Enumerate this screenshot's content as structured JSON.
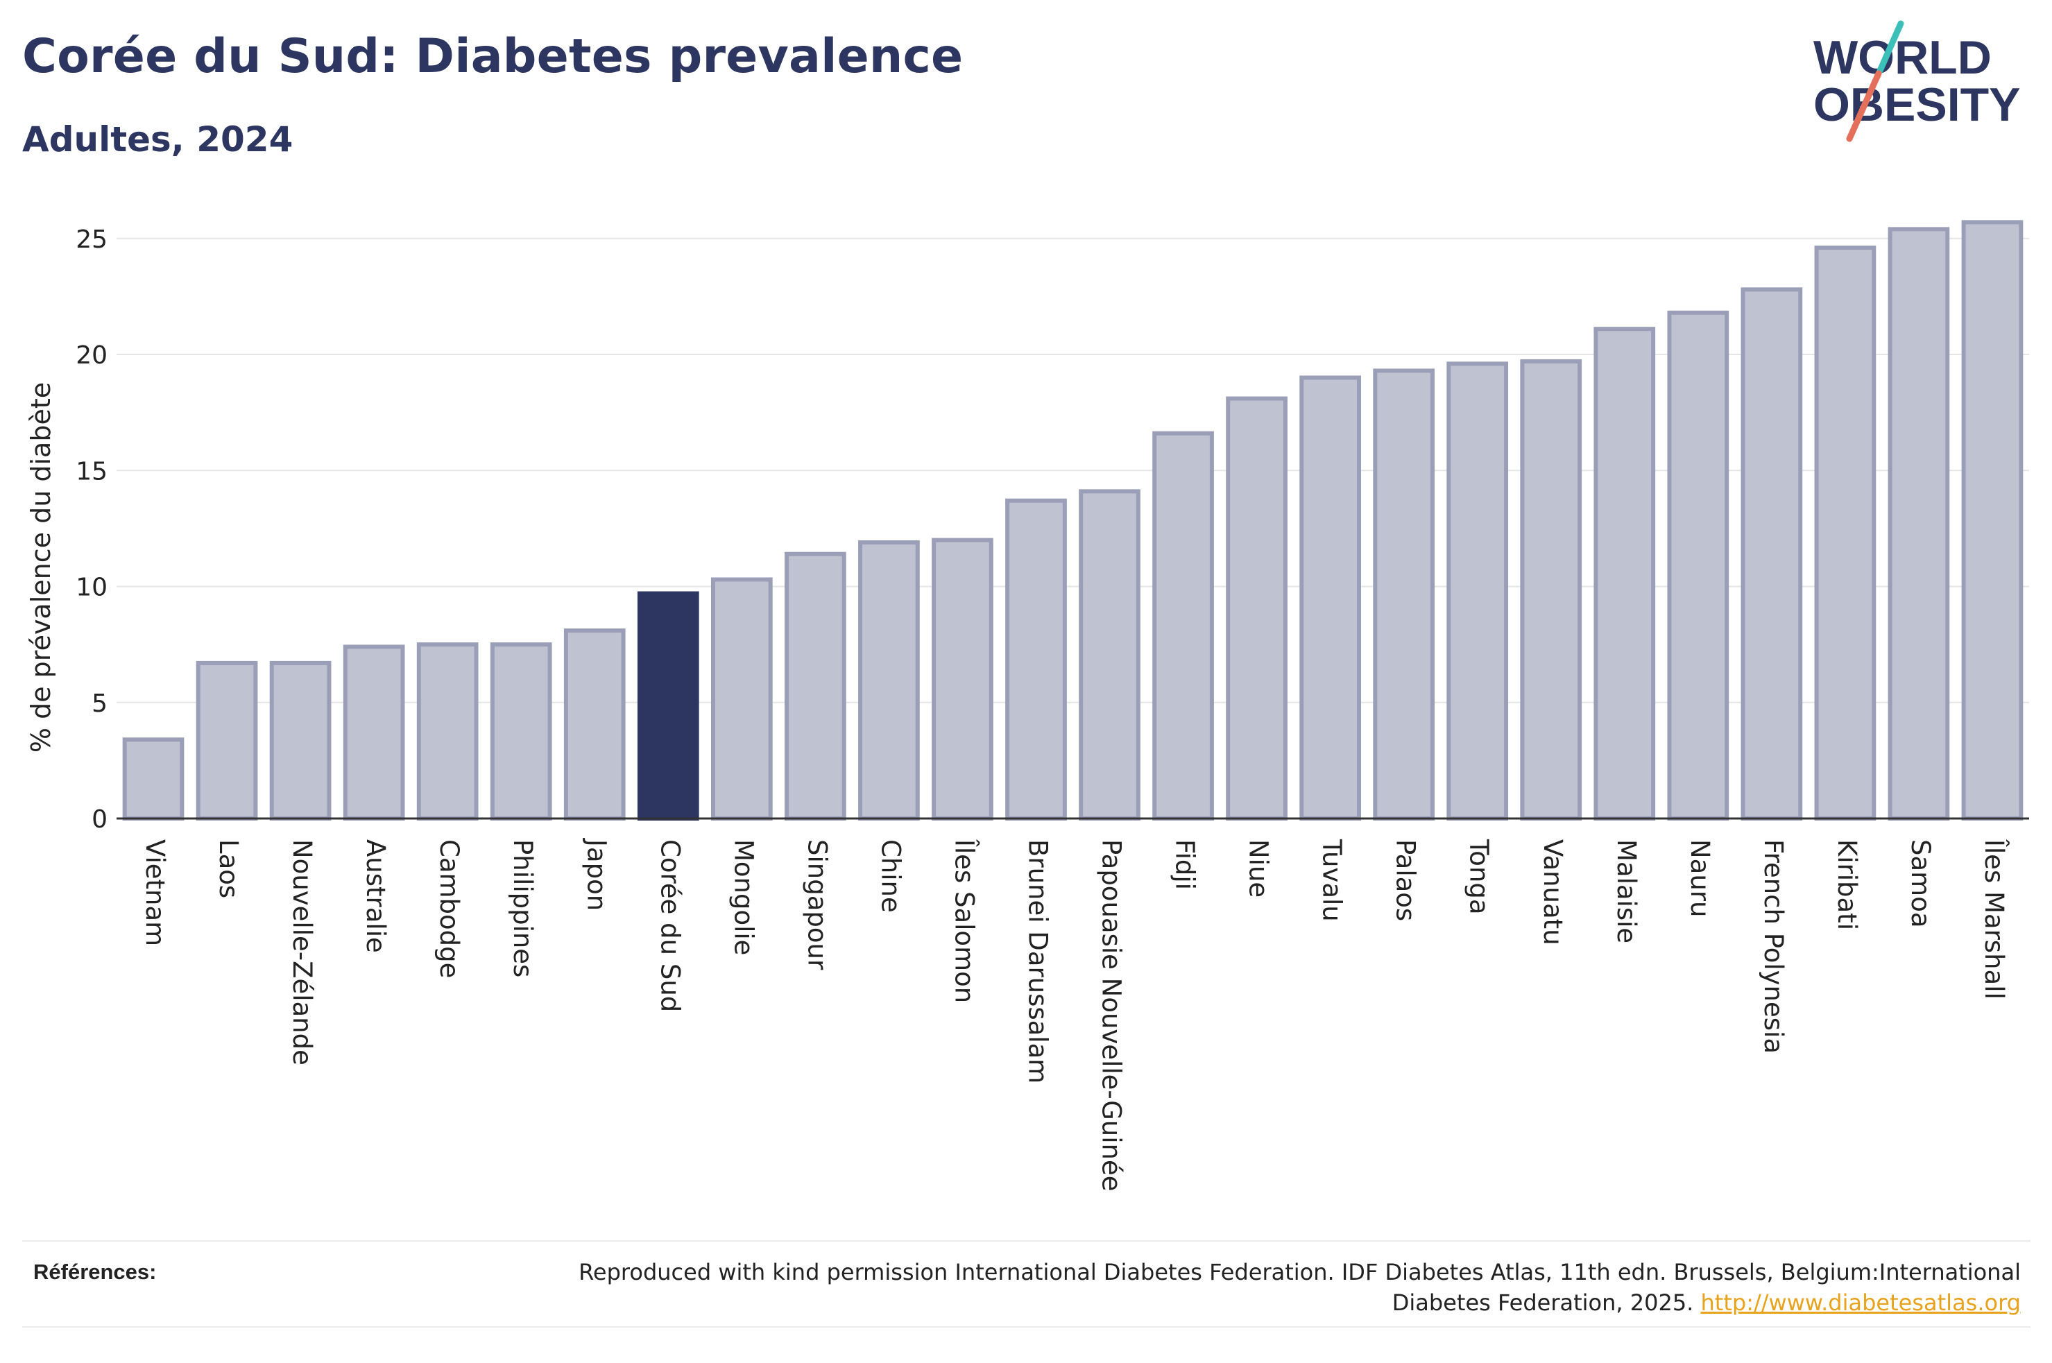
{
  "header": {
    "title": "Corée du Sud: Diabetes prevalence",
    "subtitle": "Adultes, 2024"
  },
  "logo": {
    "line1": "WORLD",
    "line2": "OBESITY",
    "colors": {
      "text": "#2d3561",
      "slash_top": "#3bbfb8",
      "slash_bottom": "#e4705c"
    }
  },
  "colors": {
    "bar": "#bfc2d0",
    "bar_stroke": "#9a9fb7",
    "highlight": "#2d3561",
    "grid": "#e6e6e6",
    "axis": "#333333"
  },
  "chart_data": {
    "type": "bar",
    "ylabel": "% de prévalence du diabète",
    "ylim": [
      0,
      26
    ],
    "yticks": [
      0,
      5,
      10,
      15,
      20,
      25
    ],
    "grid": true,
    "highlight": "Corée du Sud",
    "categories": [
      "Vietnam",
      "Laos",
      "Nouvelle-Zélande",
      "Australie",
      "Cambodge",
      "Philippines",
      "Japon",
      "Corée du Sud",
      "Mongolie",
      "Singapour",
      "Chine",
      "Îles Salomon",
      "Brunei Darussalam",
      "Papouasie Nouvelle-Guinée",
      "Fidji",
      "Niue",
      "Tuvalu",
      "Palaos",
      "Tonga",
      "Vanuatu",
      "Malaisie",
      "Nauru",
      "French Polynesia",
      "Kiribati",
      "Samoa",
      "Îles Marshall"
    ],
    "values": [
      3.4,
      6.7,
      6.7,
      7.4,
      7.5,
      7.5,
      8.1,
      9.7,
      10.3,
      11.4,
      11.9,
      12.0,
      13.7,
      14.1,
      16.6,
      18.1,
      19.0,
      19.3,
      19.6,
      19.7,
      21.1,
      21.8,
      22.8,
      24.6,
      25.4,
      25.7
    ]
  },
  "references": {
    "label": "Références:",
    "text": "Reproduced with kind permission International Diabetes Federation. IDF Diabetes Atlas, 11th edn. Brussels, Belgium:International Diabetes Federation, 2025.",
    "link": "http://www.diabetesatlas.org"
  }
}
